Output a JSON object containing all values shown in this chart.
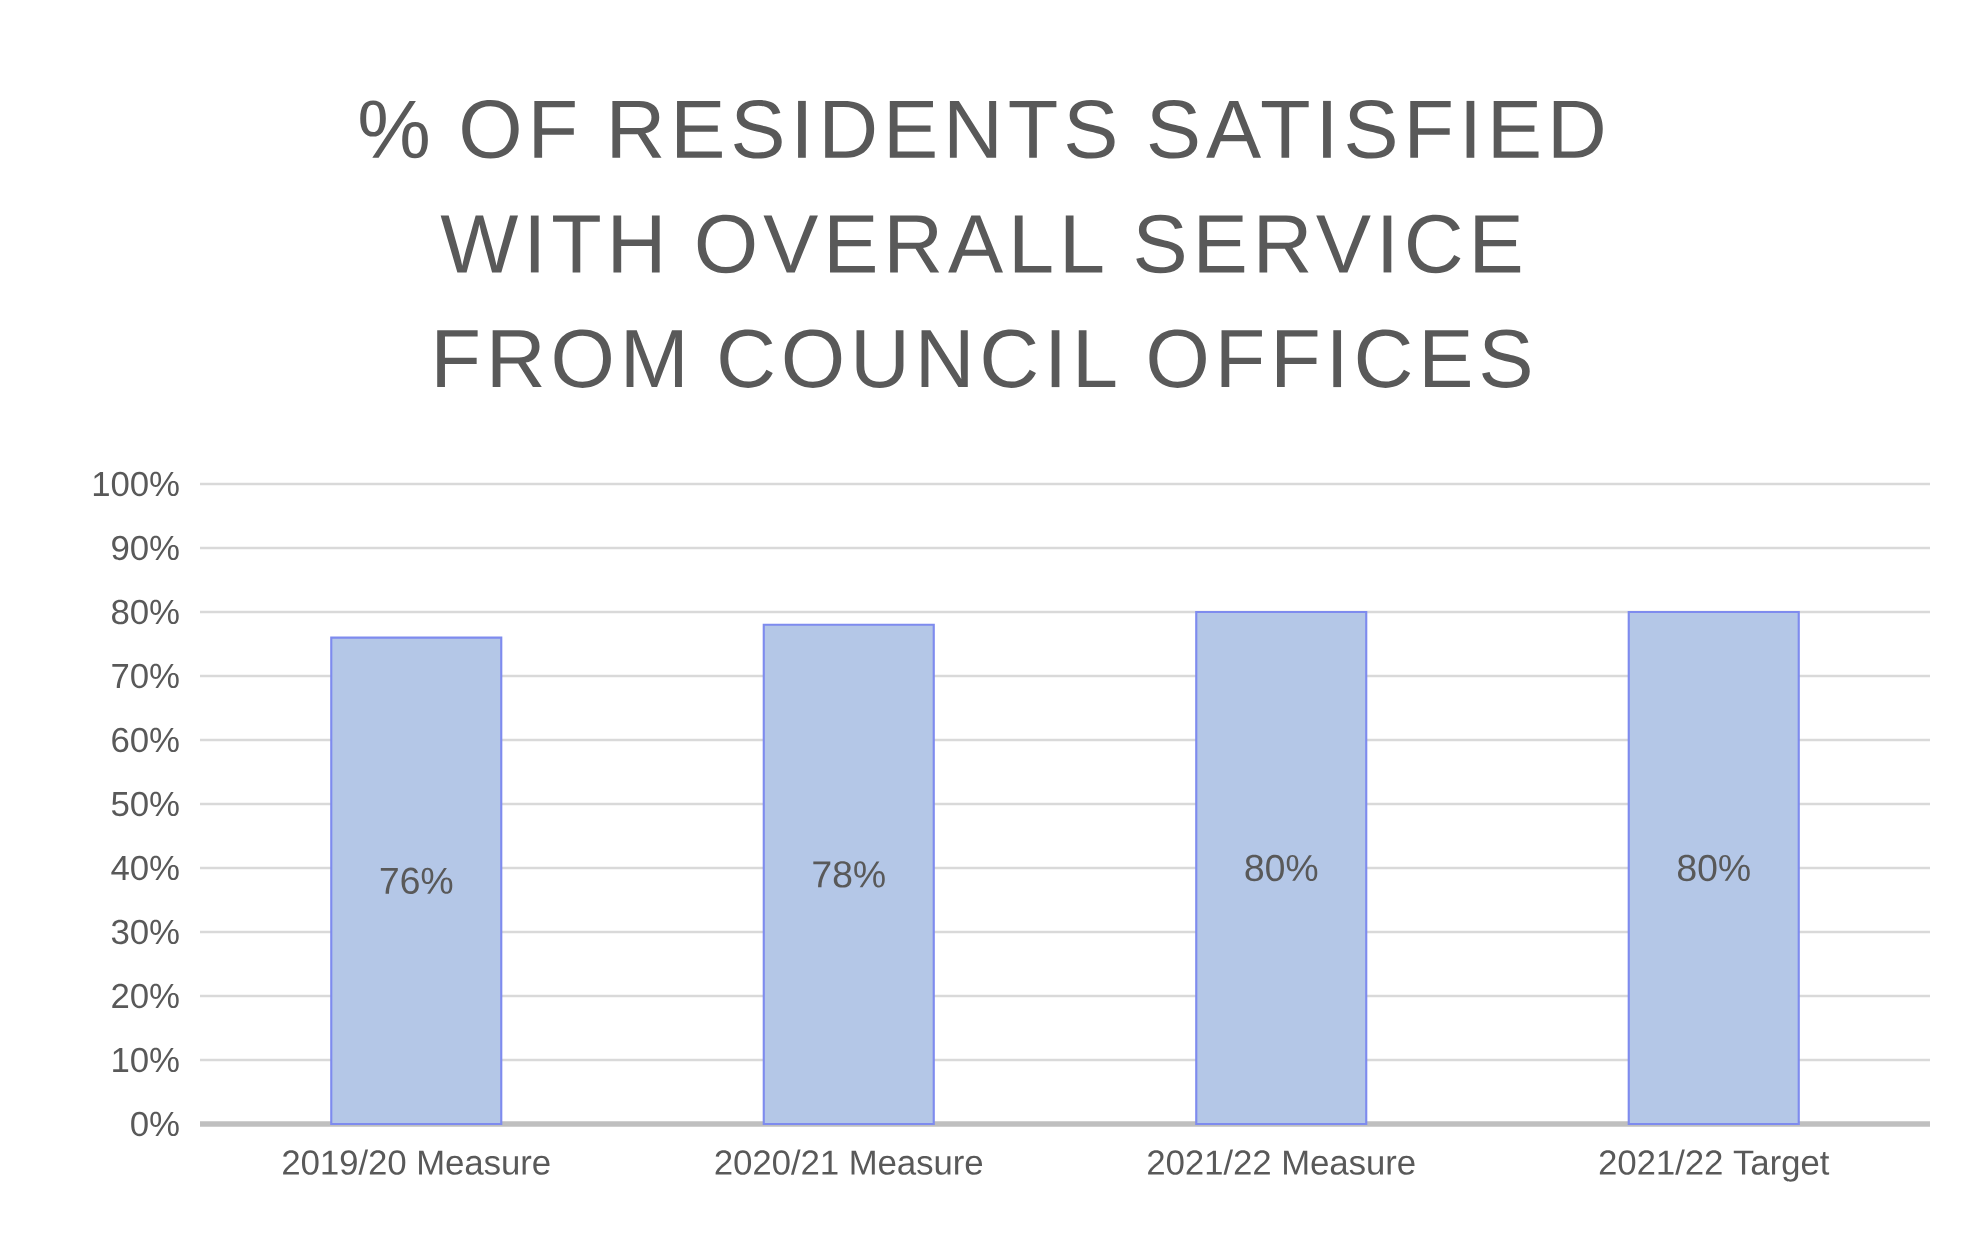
{
  "chart_data": {
    "type": "bar",
    "title": "% OF RESIDENTS SATISFIED WITH OVERALL SERVICE FROM COUNCIL OFFICES",
    "categories": [
      "2019/20 Measure",
      "2020/21 Measure",
      "2021/22 Measure",
      "2021/22 Target"
    ],
    "values": [
      76,
      78,
      80,
      80
    ],
    "color": "#b4c7e7",
    "value_labels": [
      "76%",
      "78%",
      "80%",
      "80%"
    ],
    "ylim": [
      0,
      100
    ],
    "yticks": [
      {
        "value": 0,
        "label": "0%"
      },
      {
        "value": 10,
        "label": "10%"
      },
      {
        "value": 20,
        "label": "20%"
      },
      {
        "value": 30,
        "label": "30%"
      },
      {
        "value": 40,
        "label": "40%"
      },
      {
        "value": 50,
        "label": "50%"
      },
      {
        "value": 60,
        "label": "60%"
      },
      {
        "value": 70,
        "label": "70%"
      },
      {
        "value": 80,
        "label": "80%"
      },
      {
        "value": 90,
        "label": "90%"
      },
      {
        "value": 100,
        "label": "100%"
      }
    ],
    "grid": "y"
  }
}
